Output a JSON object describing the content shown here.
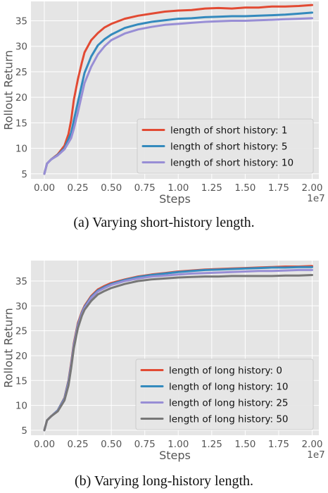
{
  "captions": {
    "a": "(a) Varying short-history length.",
    "b": "(b) Varying long-history length."
  },
  "chart_data": [
    {
      "type": "line",
      "xlabel": "Steps",
      "ylabel": "Rollout Return",
      "x_exponent_label": "1e7",
      "xlim": [
        -0.1,
        2.05
      ],
      "ylim": [
        4,
        38.8
      ],
      "xticks": [
        0.0,
        0.25,
        0.5,
        0.75,
        1.0,
        1.25,
        1.5,
        1.75,
        2.0
      ],
      "xtick_labels": [
        "0.00",
        "0.25",
        "0.50",
        "0.75",
        "1.00",
        "1.25",
        "1.50",
        "1.75",
        "2.00"
      ],
      "yticks": [
        5,
        10,
        15,
        20,
        25,
        30,
        35
      ],
      "grid": true,
      "legend_position": "lower-right",
      "series": [
        {
          "name": "length of short history: 1",
          "color": "#e24a33",
          "x": [
            0,
            0.02,
            0.05,
            0.1,
            0.15,
            0.18,
            0.2,
            0.22,
            0.25,
            0.28,
            0.3,
            0.35,
            0.4,
            0.45,
            0.5,
            0.6,
            0.7,
            0.8,
            0.9,
            1.0,
            1.1,
            1.2,
            1.3,
            1.4,
            1.5,
            1.6,
            1.7,
            1.8,
            1.9,
            2.0
          ],
          "y": [
            5,
            7,
            7.8,
            8.8,
            10.5,
            12.8,
            15.5,
            19.5,
            23.5,
            26.8,
            28.8,
            31.2,
            32.6,
            33.7,
            34.4,
            35.4,
            36.0,
            36.4,
            36.8,
            37.0,
            37.1,
            37.4,
            37.5,
            37.4,
            37.6,
            37.6,
            37.8,
            37.8,
            37.9,
            38.1
          ]
        },
        {
          "name": "length of short history: 5",
          "color": "#348abd",
          "x": [
            0,
            0.02,
            0.05,
            0.1,
            0.15,
            0.2,
            0.22,
            0.25,
            0.28,
            0.3,
            0.35,
            0.4,
            0.45,
            0.5,
            0.6,
            0.7,
            0.8,
            0.9,
            1.0,
            1.1,
            1.2,
            1.3,
            1.4,
            1.5,
            1.6,
            1.7,
            1.8,
            1.9,
            2.0
          ],
          "y": [
            5,
            7,
            7.8,
            8.7,
            10.0,
            13.0,
            15.5,
            19.0,
            22.5,
            24.8,
            28.0,
            30.2,
            31.4,
            32.3,
            33.6,
            34.3,
            34.8,
            35.1,
            35.4,
            35.5,
            35.7,
            35.8,
            35.9,
            35.9,
            36.0,
            36.1,
            36.2,
            36.4,
            36.6
          ]
        },
        {
          "name": "length of short history: 10",
          "color": "#988ed5",
          "x": [
            0,
            0.02,
            0.05,
            0.1,
            0.15,
            0.2,
            0.22,
            0.25,
            0.28,
            0.3,
            0.35,
            0.4,
            0.45,
            0.5,
            0.6,
            0.7,
            0.8,
            0.9,
            1.0,
            1.1,
            1.2,
            1.3,
            1.4,
            1.5,
            1.6,
            1.7,
            1.8,
            1.9,
            2.0
          ],
          "y": [
            5,
            7,
            7.8,
            8.6,
            9.8,
            12.0,
            13.8,
            17.0,
            20.5,
            22.8,
            26.0,
            28.4,
            30.0,
            31.2,
            32.5,
            33.3,
            33.8,
            34.2,
            34.4,
            34.6,
            34.8,
            34.9,
            35.0,
            35.0,
            35.1,
            35.2,
            35.3,
            35.4,
            35.5
          ]
        }
      ]
    },
    {
      "type": "line",
      "xlabel": "Steps",
      "ylabel": "Rollout Return",
      "x_exponent_label": "1e7",
      "xlim": [
        -0.1,
        2.05
      ],
      "ylim": [
        4,
        39.1
      ],
      "xticks": [
        0.0,
        0.25,
        0.5,
        0.75,
        1.0,
        1.25,
        1.5,
        1.75,
        2.0
      ],
      "xtick_labels": [
        "0.00",
        "0.25",
        "0.50",
        "0.75",
        "1.00",
        "1.25",
        "1.50",
        "1.75",
        "2.00"
      ],
      "yticks": [
        5,
        10,
        15,
        20,
        25,
        30,
        35
      ],
      "grid": true,
      "legend_position": "lower-right",
      "series": [
        {
          "name": "length of long history: 0",
          "color": "#e24a33",
          "x": [
            0,
            0.02,
            0.05,
            0.1,
            0.15,
            0.18,
            0.2,
            0.22,
            0.25,
            0.28,
            0.3,
            0.35,
            0.4,
            0.45,
            0.5,
            0.6,
            0.7,
            0.8,
            0.9,
            1.0,
            1.1,
            1.2,
            1.3,
            1.4,
            1.5,
            1.6,
            1.7,
            1.8,
            1.9,
            2.0
          ],
          "y": [
            5,
            7,
            7.8,
            9.0,
            11.5,
            15.0,
            18.5,
            22.5,
            26.5,
            28.8,
            30.0,
            32.0,
            33.3,
            34.0,
            34.6,
            35.3,
            35.9,
            36.3,
            36.6,
            36.9,
            37.1,
            37.3,
            37.4,
            37.5,
            37.6,
            37.7,
            37.8,
            37.9,
            37.9,
            38.0
          ]
        },
        {
          "name": "length of long history: 10",
          "color": "#348abd",
          "x": [
            0,
            0.02,
            0.05,
            0.1,
            0.15,
            0.18,
            0.2,
            0.22,
            0.25,
            0.28,
            0.3,
            0.35,
            0.4,
            0.45,
            0.5,
            0.6,
            0.7,
            0.8,
            0.9,
            1.0,
            1.1,
            1.2,
            1.3,
            1.4,
            1.5,
            1.6,
            1.7,
            1.8,
            1.9,
            2.0
          ],
          "y": [
            5,
            7,
            7.8,
            9.0,
            11.4,
            14.8,
            18.2,
            22.2,
            26.2,
            28.6,
            29.8,
            31.8,
            33.1,
            33.8,
            34.4,
            35.2,
            35.8,
            36.2,
            36.5,
            36.8,
            37.0,
            37.2,
            37.3,
            37.4,
            37.5,
            37.6,
            37.7,
            37.7,
            37.8,
            37.8
          ]
        },
        {
          "name": "length of long history: 25",
          "color": "#988ed5",
          "x": [
            0,
            0.02,
            0.05,
            0.1,
            0.15,
            0.18,
            0.2,
            0.22,
            0.25,
            0.28,
            0.3,
            0.35,
            0.4,
            0.45,
            0.5,
            0.6,
            0.7,
            0.8,
            0.9,
            1.0,
            1.1,
            1.2,
            1.3,
            1.4,
            1.5,
            1.6,
            1.7,
            1.8,
            1.9,
            2.0
          ],
          "y": [
            5,
            7,
            7.8,
            8.9,
            11.2,
            14.5,
            18.0,
            22.0,
            26.0,
            28.4,
            29.6,
            31.6,
            32.9,
            33.6,
            34.2,
            35.0,
            35.5,
            35.9,
            36.1,
            36.3,
            36.5,
            36.6,
            36.7,
            36.8,
            36.9,
            37.0,
            37.0,
            37.1,
            37.2,
            37.2
          ]
        },
        {
          "name": "length of long history: 50",
          "color": "#777777",
          "x": [
            0,
            0.02,
            0.05,
            0.1,
            0.15,
            0.18,
            0.2,
            0.22,
            0.25,
            0.28,
            0.3,
            0.35,
            0.4,
            0.45,
            0.5,
            0.6,
            0.7,
            0.8,
            0.9,
            1.0,
            1.1,
            1.2,
            1.3,
            1.4,
            1.5,
            1.6,
            1.7,
            1.8,
            1.9,
            2.0
          ],
          "y": [
            5,
            7,
            7.8,
            8.8,
            11.0,
            14.0,
            17.5,
            21.5,
            25.5,
            28.0,
            29.2,
            31.0,
            32.3,
            33.0,
            33.6,
            34.4,
            35.0,
            35.3,
            35.5,
            35.7,
            35.8,
            35.9,
            35.9,
            36.0,
            36.0,
            36.0,
            36.0,
            36.1,
            36.1,
            36.2
          ]
        }
      ]
    }
  ]
}
